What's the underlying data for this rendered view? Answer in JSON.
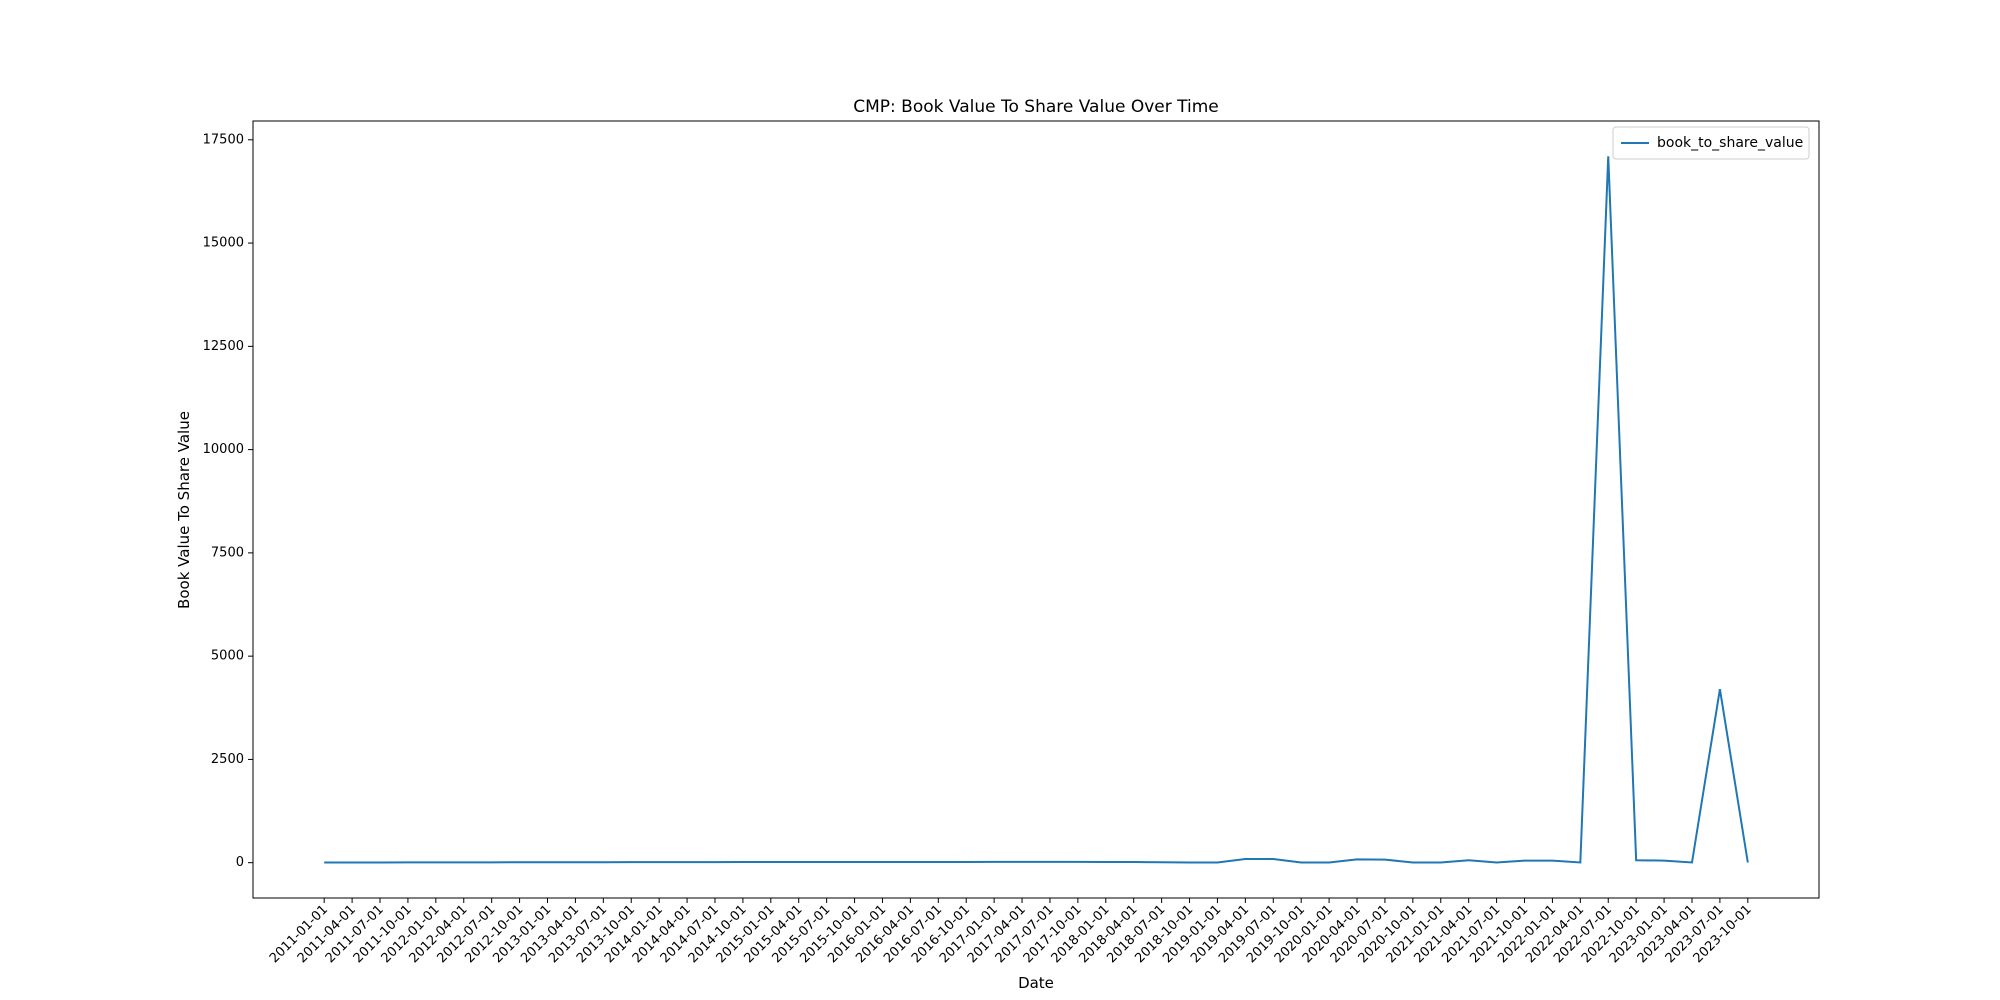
{
  "chart_data": {
    "type": "line",
    "title": "CMP: Book Value To Share Value Over Time",
    "x_label": "Date",
    "y_label": "Book Value To Share Value",
    "categories": [
      "2011-01-01",
      "2011-04-01",
      "2011-07-01",
      "2011-10-01",
      "2012-01-01",
      "2012-04-01",
      "2012-07-01",
      "2012-10-01",
      "2013-01-01",
      "2013-04-01",
      "2013-07-01",
      "2013-10-01",
      "2014-01-01",
      "2014-04-01",
      "2014-07-01",
      "2014-10-01",
      "2015-01-01",
      "2015-04-01",
      "2015-07-01",
      "2015-10-01",
      "2016-01-01",
      "2016-04-01",
      "2016-07-01",
      "2016-10-01",
      "2017-01-01",
      "2017-04-01",
      "2017-07-01",
      "2017-10-01",
      "2018-01-01",
      "2018-04-01",
      "2018-07-01",
      "2018-10-01",
      "2019-01-01",
      "2019-04-01",
      "2019-07-01",
      "2019-10-01",
      "2020-01-01",
      "2020-04-01",
      "2020-07-01",
      "2020-10-01",
      "2021-01-01",
      "2021-04-01",
      "2021-07-01",
      "2021-10-01",
      "2022-01-01",
      "2022-04-01",
      "2022-07-01",
      "2022-10-01",
      "2023-01-01",
      "2023-04-01",
      "2023-07-01",
      "2023-10-01"
    ],
    "series": [
      {
        "name": "book_to_share_value",
        "color": "#1f77b4",
        "values": [
          5,
          5,
          5,
          8,
          8,
          8,
          8,
          10,
          10,
          10,
          10,
          12,
          12,
          12,
          12,
          15,
          15,
          15,
          15,
          15,
          18,
          18,
          18,
          18,
          20,
          20,
          20,
          20,
          18,
          15,
          10,
          5,
          5,
          90,
          90,
          5,
          5,
          80,
          75,
          5,
          5,
          60,
          5,
          50,
          50,
          5,
          17100,
          60,
          50,
          5,
          4200,
          5
        ]
      }
    ],
    "ylim": [
      -855,
      17955
    ],
    "yticks": [
      0,
      2500,
      5000,
      7500,
      10000,
      12500,
      15000,
      17500
    ],
    "legend": "upper right"
  }
}
